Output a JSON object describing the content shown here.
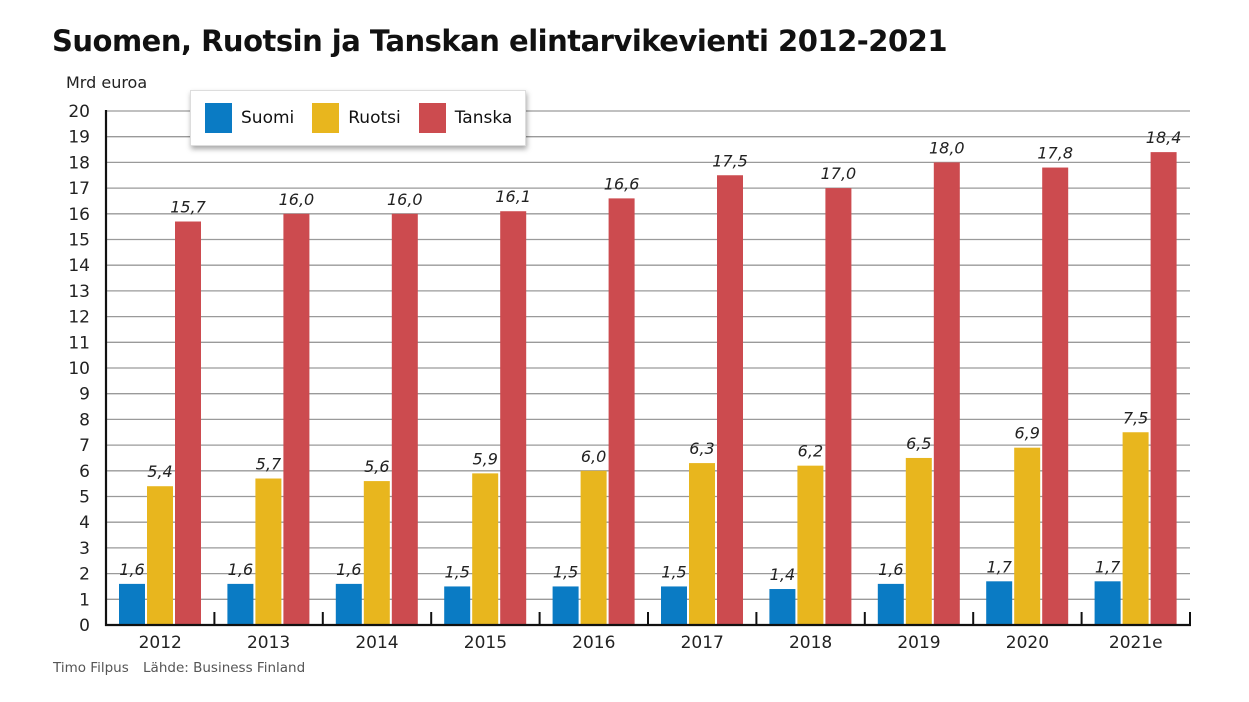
{
  "chart_data": {
    "type": "bar",
    "title": "Suomen, Ruotsin ja Tanskan elintarvikevienti 2012-2021",
    "ylabel": "Mrd euroa",
    "xlabel": "",
    "ylim": [
      0,
      20
    ],
    "yticks": [
      0,
      1,
      2,
      3,
      4,
      5,
      6,
      7,
      8,
      9,
      10,
      11,
      12,
      13,
      14,
      15,
      16,
      17,
      18,
      19,
      20
    ],
    "grid": true,
    "legend_position": "top-left",
    "categories": [
      "2012",
      "2013",
      "2014",
      "2015",
      "2016",
      "2017",
      "2018",
      "2019",
      "2020",
      "2021e"
    ],
    "series": [
      {
        "name": "Suomi",
        "color": "#0a7bc4",
        "values": [
          1.6,
          1.6,
          1.6,
          1.5,
          1.5,
          1.5,
          1.4,
          1.6,
          1.7,
          1.7
        ],
        "labels": [
          "1,6",
          "1,6",
          "1,6",
          "1,5",
          "1,5",
          "1,5",
          "1,4",
          "1,6",
          "1,7",
          "1,7"
        ]
      },
      {
        "name": "Ruotsi",
        "color": "#e8b61e",
        "values": [
          5.4,
          5.7,
          5.6,
          5.9,
          6.0,
          6.3,
          6.2,
          6.5,
          6.9,
          7.5
        ],
        "labels": [
          "5,4",
          "5,7",
          "5,6",
          "5,9",
          "6,0",
          "6,3",
          "6,2",
          "6,5",
          "6,9",
          "7,5"
        ]
      },
      {
        "name": "Tanska",
        "color": "#cc4b4f",
        "values": [
          15.7,
          16.0,
          16.0,
          16.1,
          16.6,
          17.5,
          17.0,
          18.0,
          17.8,
          18.4
        ],
        "labels": [
          "15,7",
          "16,0",
          "16,0",
          "16,1",
          "16,6",
          "17,5",
          "17,0",
          "18,0",
          "17,8",
          "18,4"
        ]
      }
    ]
  },
  "footer": {
    "author": "Timo Filpus",
    "source": "Lähde: Business Finland"
  }
}
